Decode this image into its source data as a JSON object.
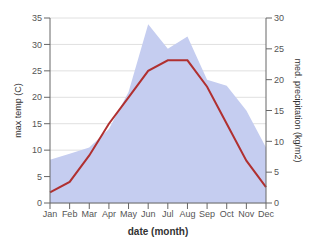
{
  "chart_data": {
    "type": "line",
    "categories": [
      "Jan",
      "Feb",
      "Mar",
      "Apr",
      "May",
      "Jun",
      "Jul",
      "Aug",
      "Sep",
      "Oct",
      "Nov",
      "Dec"
    ],
    "xlabel": "date (month)",
    "ylabel": "max temp (C)",
    "y2label": "med. precipitation (kg/m2)",
    "series": [
      {
        "type": "area",
        "color": "#c5cdf0",
        "axis": "y2",
        "values": [
          7,
          8,
          9,
          12,
          18,
          29,
          25,
          27,
          20,
          19,
          15,
          9
        ]
      },
      {
        "type": "line",
        "color": "#b03030",
        "axis": "y",
        "values": [
          2,
          4,
          9,
          15,
          20,
          25,
          27,
          27,
          22,
          15,
          8,
          3
        ]
      }
    ],
    "ylim": [
      0,
      35
    ],
    "yticks": [
      0,
      5,
      10,
      15,
      20,
      25,
      30,
      35
    ],
    "y2lim": [
      0,
      30
    ],
    "y2ticks": [
      0,
      5,
      10,
      15,
      20,
      25,
      30
    ],
    "grid": true
  }
}
